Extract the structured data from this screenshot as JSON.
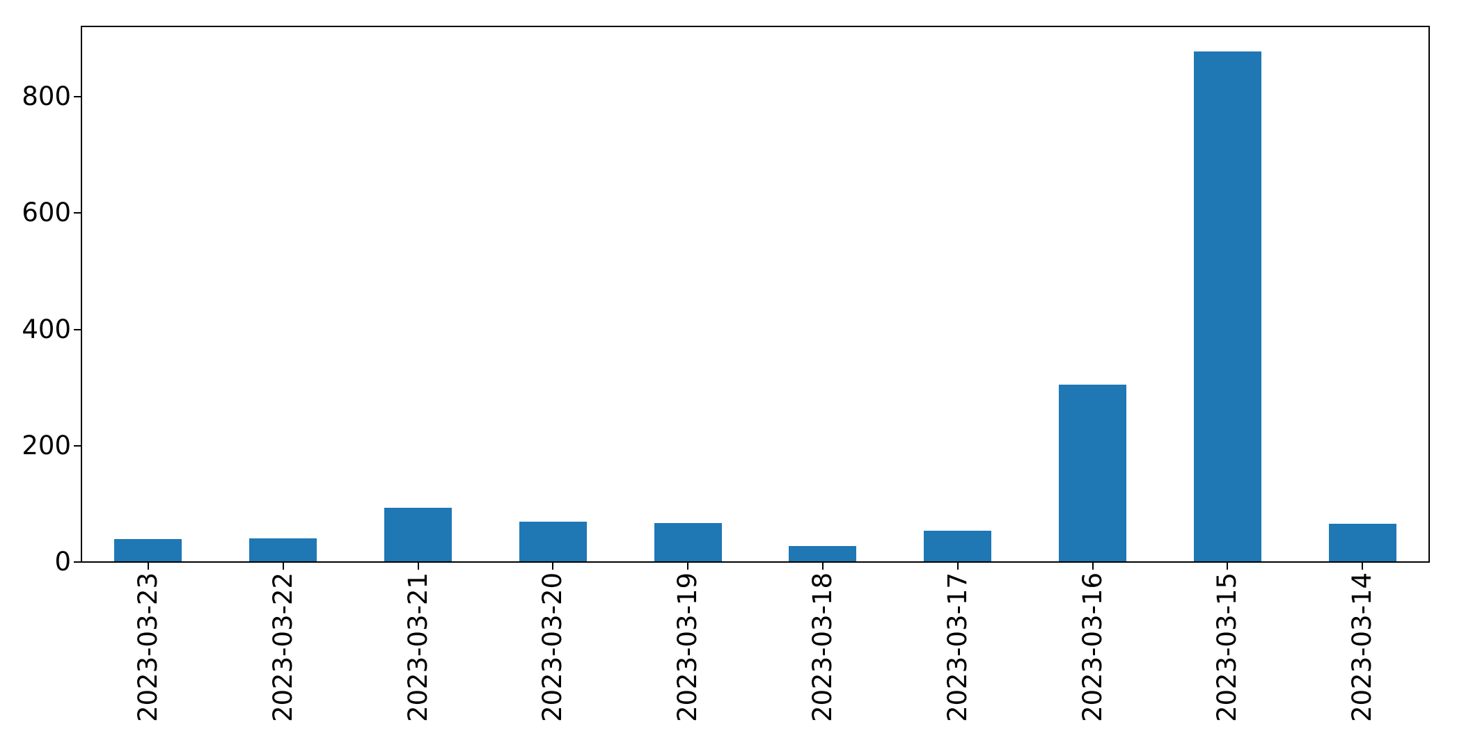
{
  "chart_data": {
    "type": "bar",
    "title": "",
    "xlabel": "",
    "ylabel": "",
    "categories": [
      "2023-03-23",
      "2023-03-22",
      "2023-03-21",
      "2023-03-20",
      "2023-03-19",
      "2023-03-18",
      "2023-03-17",
      "2023-03-16",
      "2023-03-15",
      "2023-03-14"
    ],
    "values": [
      38,
      39,
      92,
      68,
      66,
      26,
      53,
      304,
      876,
      65
    ],
    "yticks": [
      0,
      200,
      400,
      600,
      800
    ],
    "ylim": [
      0,
      922
    ],
    "bar_color": "#1f77b4",
    "axis_color": "#000000",
    "text_color": "#000000",
    "background_color": "#ffffff",
    "grid": false,
    "legend": false,
    "x_tick_rotation_deg": 90
  }
}
